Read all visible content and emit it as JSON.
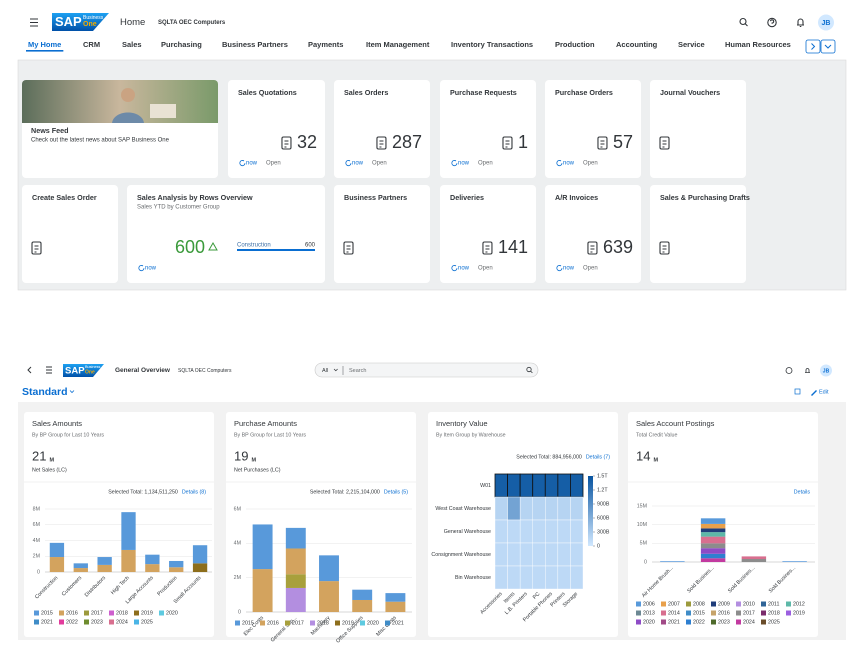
{
  "home": {
    "logo": "SAP",
    "logo_sub": "Business",
    "logo_sub2": "One",
    "app_title": "Home",
    "company": "SQLTA OEC Computers",
    "avatar": "JB",
    "tabs": [
      "My Home",
      "CRM",
      "Sales",
      "Purchasing",
      "Business Partners",
      "Payments",
      "Item Management",
      "Inventory Transactions",
      "Production",
      "Accounting",
      "Service",
      "Human Resources"
    ],
    "news": {
      "title": "News Feed",
      "text": "Check out the latest news about SAP Business One"
    },
    "tiles": [
      {
        "title": "Sales Quotations",
        "count": 32,
        "refresh": "now",
        "action": "Open"
      },
      {
        "title": "Sales Orders",
        "count": 287,
        "refresh": "now",
        "action": "Open"
      },
      {
        "title": "Purchase Requests",
        "count": 1,
        "refresh": "now",
        "action": "Open"
      },
      {
        "title": "Purchase Orders",
        "count": 57,
        "refresh": "now",
        "action": "Open"
      },
      {
        "title": "Journal Vouchers"
      },
      {
        "title": "Create Sales Order"
      },
      {
        "title": "Sales Analysis by Rows Overview",
        "subtitle": "Sales YTD by Customer Group",
        "count": 600,
        "bar_label": "Construction",
        "bar_value": 600,
        "refresh": "now"
      },
      {
        "title": "Business Partners"
      },
      {
        "title": "Deliveries",
        "count": 141,
        "refresh": "now",
        "action": "Open"
      },
      {
        "title": "A/R Invoices",
        "count": 639,
        "refresh": "now",
        "action": "Open"
      },
      {
        "title": "Sales & Purchasing Drafts"
      }
    ]
  },
  "overview": {
    "logo": "SAP",
    "logo_sub": "Business",
    "logo_sub2": "One",
    "page_title": "General Overview",
    "company": "SQLTA OEC Computers",
    "avatar": "JB",
    "scope": "All",
    "search": "Search",
    "variant": "Standard",
    "edit": "Edit"
  },
  "chart_data": [
    {
      "type": "bar",
      "stacked": true,
      "title": "Sales Amounts",
      "subtitle": "By BP Group for Last 10 Years",
      "kpi": 21,
      "kpi_unit": "M",
      "kpi_label": "Net Sales (LC)",
      "total_label": "Selected Total: 1,134,511,250",
      "details": "Details (8)",
      "categories": [
        "Construction",
        "Customers",
        "Distributors",
        "High Tech",
        "Large Accounts",
        "Production",
        "Small Accounts"
      ],
      "ylim": [
        0,
        8000000
      ],
      "yticks": [
        0,
        {
          "value": 2000000,
          "label": "2M"
        },
        {
          "value": 4000000,
          "label": "4M"
        },
        {
          "value": 6000000,
          "label": "6M"
        },
        {
          "value": 8000000,
          "label": "8M"
        }
      ],
      "grid": true,
      "series": [
        {
          "name": "2015",
          "color": "#5899DA",
          "values": [
            1800000,
            600000,
            1000000,
            4800000,
            1200000,
            800000,
            2300000
          ]
        },
        {
          "name": "2016",
          "color": "#D3A35E",
          "values": [
            1900000,
            500000,
            900000,
            2800000,
            1000000,
            600000,
            null
          ]
        },
        {
          "name": "2017",
          "color": "#9C9A3C",
          "values": [
            null,
            null,
            null,
            null,
            null,
            null,
            null
          ]
        },
        {
          "name": "2018",
          "color": "#CE5FCE",
          "values": [
            null,
            null,
            null,
            null,
            null,
            null,
            null
          ]
        },
        {
          "name": "2019",
          "color": "#8D6E1C",
          "values": [
            null,
            null,
            null,
            null,
            null,
            null,
            1100000
          ]
        },
        {
          "name": "2020",
          "color": "#5ECAE0",
          "values": [
            null,
            null,
            null,
            null,
            null,
            null,
            null
          ]
        },
        {
          "name": "2021",
          "color": "#3F8CC7",
          "values": [
            null,
            null,
            null,
            null,
            null,
            null,
            null
          ]
        },
        {
          "name": "2022",
          "color": "#E23C9C",
          "values": [
            null,
            null,
            null,
            null,
            null,
            null,
            null
          ]
        },
        {
          "name": "2023",
          "color": "#6E8C2E",
          "values": [
            null,
            null,
            null,
            null,
            null,
            null,
            null
          ]
        },
        {
          "name": "2024",
          "color": "#D86F8F",
          "values": [
            null,
            null,
            null,
            null,
            null,
            null,
            null
          ]
        },
        {
          "name": "2025",
          "color": "#4BB5E6",
          "values": [
            null,
            null,
            null,
            null,
            null,
            null,
            null
          ]
        }
      ]
    },
    {
      "type": "bar",
      "stacked": true,
      "title": "Purchase Amounts",
      "subtitle": "By BP Group for Last 10 Years",
      "kpi": 19,
      "kpi_unit": "M",
      "kpi_label": "Net Purchases (LC)",
      "total_label": "Selected Total: 2,215,104,000",
      "details": "Details (5)",
      "categories": [
        "Elec Costs",
        "General Sup...",
        "Machinery",
        "Office Supplies",
        "Misc Costs"
      ],
      "ylim": [
        0,
        6000000
      ],
      "yticks": [
        0,
        {
          "value": 2000000,
          "label": "2M"
        },
        {
          "value": 4000000,
          "label": "4M"
        },
        {
          "value": 6000000,
          "label": "6M"
        }
      ],
      "grid": true,
      "series": [
        {
          "name": "2015",
          "color": "#5899DA",
          "values": [
            2600000,
            1200000,
            1500000,
            600000,
            500000
          ]
        },
        {
          "name": "2016",
          "color": "#D3A35E",
          "values": [
            2500000,
            1500000,
            1800000,
            700000,
            600000
          ]
        },
        {
          "name": "2017",
          "color": "#A8A03C",
          "values": [
            null,
            800000,
            null,
            null,
            null
          ]
        },
        {
          "name": "2018",
          "color": "#B38EE0",
          "values": [
            null,
            1400000,
            null,
            null,
            null
          ]
        },
        {
          "name": "2019",
          "color": "#8D6E1C",
          "values": [
            null,
            null,
            null,
            null,
            null
          ]
        },
        {
          "name": "2020",
          "color": "#5ECAE0",
          "values": [
            null,
            null,
            null,
            null,
            null
          ]
        },
        {
          "name": "2021",
          "color": "#3F8CC7",
          "values": [
            null,
            null,
            null,
            null,
            null
          ]
        }
      ]
    },
    {
      "type": "heatmap",
      "title": "Inventory Value",
      "subtitle": "By Item Group by Warehouse",
      "total_label": "Selected Total: 884,956,000",
      "details": "Details (7)",
      "rows": [
        "W01",
        "West Coast Warehouse",
        "General Warehouse",
        "Consignment Warehouse",
        "Bin Warehouse"
      ],
      "columns": [
        "Accessories",
        "Items",
        "L.B. Printers",
        "PC",
        "Portable Phones",
        "Printers",
        "Storage"
      ],
      "values": [
        [
          1400000000000,
          1400000000000,
          1400000000000,
          1400000000000,
          1400000000000,
          1400000000000,
          1400000000000
        ],
        [
          200000000000,
          700000000000,
          200000000000,
          200000000000,
          200000000000,
          200000000000,
          200000000000
        ],
        [
          150000000000,
          150000000000,
          150000000000,
          150000000000,
          150000000000,
          150000000000,
          150000000000
        ],
        [
          150000000000,
          150000000000,
          150000000000,
          150000000000,
          150000000000,
          150000000000,
          150000000000
        ],
        [
          150000000000,
          150000000000,
          150000000000,
          150000000000,
          150000000000,
          150000000000,
          150000000000
        ]
      ],
      "colors": [
        "#D1E8FF",
        "#0854A0"
      ],
      "clim": [
        0,
        1500000000000
      ],
      "cticks": [
        0,
        {
          "value": 300000000000,
          "label": "300B"
        },
        {
          "value": 600000000000,
          "label": "600B"
        },
        {
          "value": 900000000000,
          "label": "900B"
        },
        {
          "value": 1200000000000,
          "label": "1.2T"
        },
        {
          "value": 1500000000000,
          "label": "1.5T"
        }
      ]
    },
    {
      "type": "bar",
      "stacked": true,
      "title": "Sales Account Postings",
      "subtitle": "Total Credit Value",
      "kpi": 14,
      "kpi_unit": "M",
      "details": "Details",
      "categories": [
        "Air Home Brush...",
        "Sold Busines...",
        "Sold Busines...",
        "Sold Busines..."
      ],
      "ylim": [
        0,
        15000000
      ],
      "yticks": [
        0,
        {
          "value": 5000000,
          "label": "5M"
        },
        {
          "value": 10000000,
          "label": "10M"
        },
        {
          "value": 15000000,
          "label": "15M"
        }
      ],
      "grid": true,
      "series": [
        {
          "name": "2006",
          "color": "#5899DA",
          "values": [
            200000,
            1500000,
            null,
            200000
          ]
        },
        {
          "name": "2007",
          "color": "#E8A04B",
          "values": [
            null,
            1200000,
            null,
            null
          ]
        },
        {
          "name": "2008",
          "color": "#9C9A3C",
          "values": [
            null,
            null,
            null,
            null
          ]
        },
        {
          "name": "2009",
          "color": "#1F3D7A",
          "values": [
            null,
            1000000,
            null,
            null
          ]
        },
        {
          "name": "2010",
          "color": "#B38EE0",
          "values": [
            null,
            null,
            null,
            null
          ]
        },
        {
          "name": "2011",
          "color": "#2F6497",
          "values": [
            null,
            null,
            null,
            null
          ]
        },
        {
          "name": "2012",
          "color": "#5DB8A8",
          "values": [
            null,
            1200000,
            null,
            null
          ]
        },
        {
          "name": "2013",
          "color": "#6C8893",
          "values": [
            null,
            null,
            null,
            null
          ]
        },
        {
          "name": "2014",
          "color": "#D86F8F",
          "values": [
            null,
            1800000,
            700000,
            null
          ]
        },
        {
          "name": "2015",
          "color": "#3F8CC7",
          "values": [
            null,
            null,
            null,
            null
          ]
        },
        {
          "name": "2016",
          "color": "#C6A36A",
          "values": [
            null,
            null,
            null,
            null
          ]
        },
        {
          "name": "2017",
          "color": "#8C8C8C",
          "values": [
            null,
            1300000,
            800000,
            null
          ]
        },
        {
          "name": "2018",
          "color": "#7A2B6B",
          "values": [
            null,
            null,
            null,
            null
          ]
        },
        {
          "name": "2019",
          "color": "#9B5FE0",
          "values": [
            null,
            null,
            null,
            null
          ]
        },
        {
          "name": "2020",
          "color": "#8E4BC6",
          "values": [
            null,
            1500000,
            null,
            null
          ]
        },
        {
          "name": "2021",
          "color": "#A14A87",
          "values": [
            null,
            null,
            null,
            null
          ]
        },
        {
          "name": "2022",
          "color": "#2E7FD0",
          "values": [
            null,
            1200000,
            null,
            null
          ]
        },
        {
          "name": "2023",
          "color": "#4E6A2B",
          "values": [
            null,
            null,
            null,
            null
          ]
        },
        {
          "name": "2024",
          "color": "#C23AA0",
          "values": [
            null,
            1000000,
            null,
            null
          ]
        },
        {
          "name": "2025",
          "color": "#6A4C2A",
          "values": [
            null,
            null,
            null,
            null
          ]
        }
      ]
    }
  ]
}
